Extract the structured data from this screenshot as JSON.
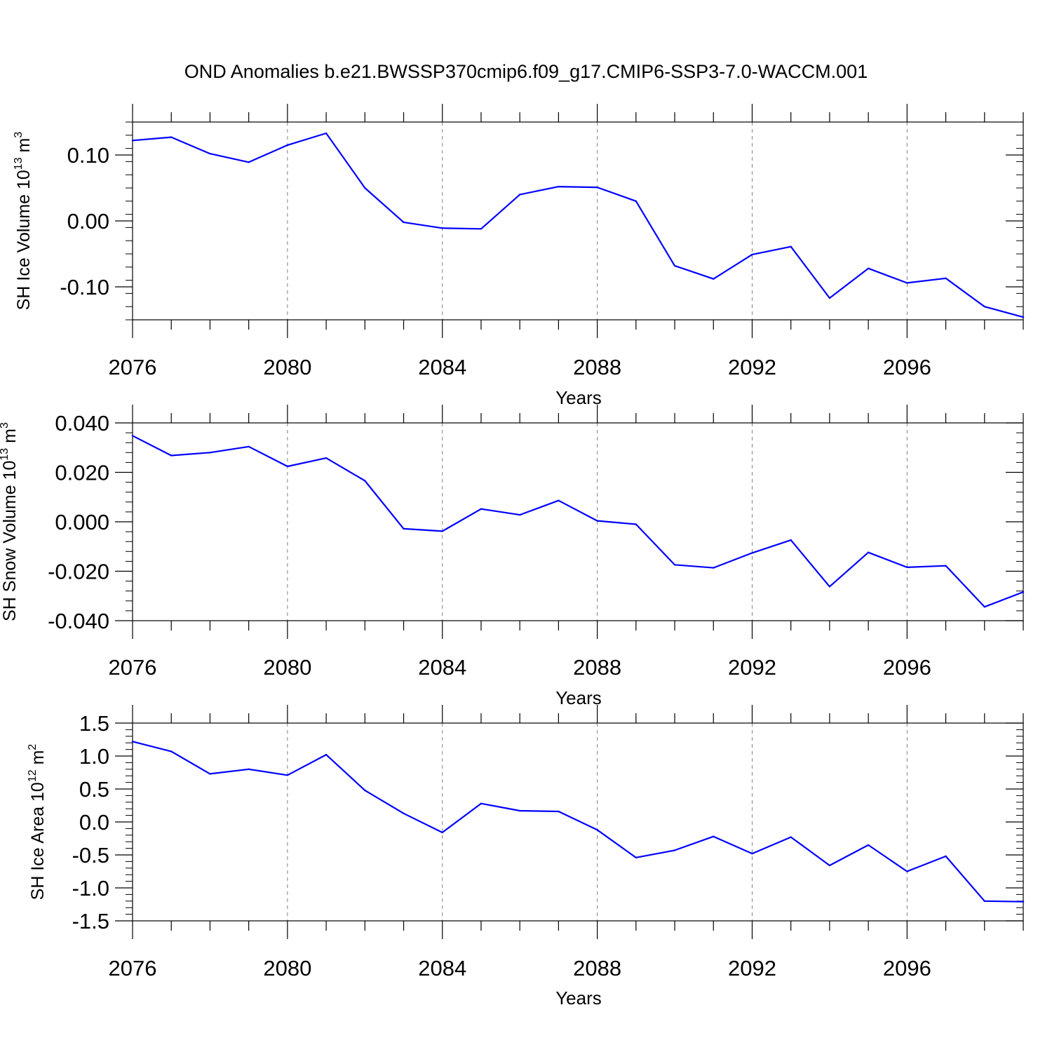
{
  "title": "OND Anomalies b.e21.BWSSP370cmip6.f09_g17.CMIP6-SSP3-7.0-WACCM.001",
  "colors": {
    "line": "#0000ff",
    "axis": "#000000",
    "grid": "#808080"
  },
  "chart_data": [
    {
      "type": "line",
      "ylabel": {
        "base": "SH Ice Volume 10",
        "exp": "13",
        "unit": " m",
        "unit_exp": "3"
      },
      "xlabel": "Years",
      "xlim": [
        2076,
        2099
      ],
      "ylim": [
        -0.15,
        0.15
      ],
      "xticks": [
        2076,
        2080,
        2084,
        2088,
        2092,
        2096
      ],
      "xtick_labels": [
        "2076",
        "2080",
        "2084",
        "2088",
        "2092",
        "2096"
      ],
      "yticks": [
        -0.1,
        0.0,
        0.1
      ],
      "ytick_labels": [
        "-0.10",
        "0.00",
        "0.10"
      ],
      "yminor_step": 0.02,
      "grid": "vertical dashed at major x ticks",
      "x": [
        2076,
        2077,
        2078,
        2079,
        2080,
        2081,
        2082,
        2083,
        2084,
        2085,
        2086,
        2087,
        2088,
        2089,
        2090,
        2091,
        2092,
        2093,
        2094,
        2095,
        2096,
        2097,
        2098,
        2099
      ],
      "values": [
        0.122,
        0.127,
        0.102,
        0.089,
        0.115,
        0.133,
        0.05,
        -0.002,
        -0.011,
        -0.012,
        0.04,
        0.052,
        0.051,
        0.03,
        -0.068,
        -0.088,
        -0.051,
        -0.039,
        -0.117,
        -0.072,
        -0.094,
        -0.087,
        -0.13,
        -0.146
      ]
    },
    {
      "type": "line",
      "ylabel": {
        "base": "SH Snow Volume 10",
        "exp": "13",
        "unit": " m",
        "unit_exp": "3"
      },
      "xlabel": "Years",
      "xlim": [
        2076,
        2099
      ],
      "ylim": [
        -0.04,
        0.04
      ],
      "xticks": [
        2076,
        2080,
        2084,
        2088,
        2092,
        2096
      ],
      "xtick_labels": [
        "2076",
        "2080",
        "2084",
        "2088",
        "2092",
        "2096"
      ],
      "yticks": [
        -0.04,
        -0.02,
        0.0,
        0.02,
        0.04
      ],
      "ytick_labels": [
        "-0.040",
        "-0.020",
        "0.000",
        "0.020",
        "0.040"
      ],
      "yminor_step": 0.004,
      "grid": "vertical dashed at major x ticks",
      "x": [
        2076,
        2077,
        2078,
        2079,
        2080,
        2081,
        2082,
        2083,
        2084,
        2085,
        2086,
        2087,
        2088,
        2089,
        2090,
        2091,
        2092,
        2093,
        2094,
        2095,
        2096,
        2097,
        2098,
        2099
      ],
      "values": [
        0.0348,
        0.0268,
        0.028,
        0.0304,
        0.0224,
        0.0258,
        0.0166,
        -0.0028,
        -0.0038,
        0.0052,
        0.0028,
        0.0086,
        0.0004,
        -0.001,
        -0.0174,
        -0.0186,
        -0.0126,
        -0.0074,
        -0.0262,
        -0.0124,
        -0.0184,
        -0.0178,
        -0.0344,
        -0.0284
      ]
    },
    {
      "type": "line",
      "ylabel": {
        "base": "SH Ice Area 10",
        "exp": "12",
        "unit": " m",
        "unit_exp": "2"
      },
      "xlabel": "Years",
      "xlim": [
        2076,
        2099
      ],
      "ylim": [
        -1.5,
        1.5
      ],
      "xticks": [
        2076,
        2080,
        2084,
        2088,
        2092,
        2096
      ],
      "xtick_labels": [
        "2076",
        "2080",
        "2084",
        "2088",
        "2092",
        "2096"
      ],
      "yticks": [
        -1.5,
        -1.0,
        -0.5,
        0.0,
        0.5,
        1.0,
        1.5
      ],
      "ytick_labels": [
        "-1.5",
        "-1.0",
        "-0.5",
        "0.0",
        "0.5",
        "1.0",
        "1.5"
      ],
      "yminor_step": 0.1,
      "grid": "vertical dashed at major x ticks",
      "x": [
        2076,
        2077,
        2078,
        2079,
        2080,
        2081,
        2082,
        2083,
        2084,
        2085,
        2086,
        2087,
        2088,
        2089,
        2090,
        2091,
        2092,
        2093,
        2094,
        2095,
        2096,
        2097,
        2098,
        2099
      ],
      "values": [
        1.22,
        1.07,
        0.73,
        0.8,
        0.71,
        1.02,
        0.48,
        0.13,
        -0.16,
        0.28,
        0.17,
        0.16,
        -0.12,
        -0.54,
        -0.43,
        -0.22,
        -0.48,
        -0.23,
        -0.66,
        -0.35,
        -0.75,
        -0.52,
        -1.2,
        -1.21
      ]
    }
  ]
}
